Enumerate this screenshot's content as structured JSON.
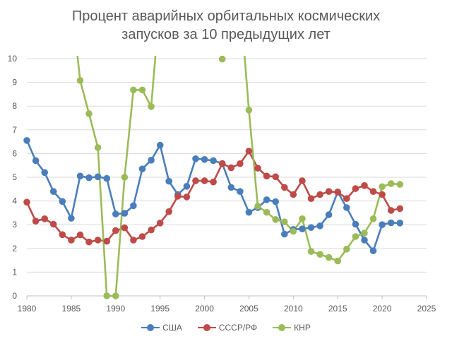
{
  "chart_data": {
    "type": "line",
    "title": [
      "Процент аварийных орбитальных космических",
      "запусков за 10 предыдущих лет"
    ],
    "xlim": [
      1980,
      2025
    ],
    "ylim": [
      0,
      10
    ],
    "x_ticks": [
      "1980",
      "1985",
      "1990",
      "1995",
      "2000",
      "2005",
      "2010",
      "2015",
      "2020",
      "2025"
    ],
    "y_ticks": [
      "0",
      "1",
      "2",
      "3",
      "4",
      "5",
      "6",
      "7",
      "8",
      "9",
      "10"
    ],
    "grid": "horizontal",
    "legend_position": "bottom",
    "series": [
      {
        "name": "США",
        "color": "#4a7ebb",
        "x": [
          1980,
          1981,
          1982,
          1983,
          1984,
          1985,
          1986,
          1987,
          1988,
          1989,
          1990,
          1991,
          1992,
          1993,
          1994,
          1995,
          1996,
          1997,
          1998,
          1999,
          2000,
          2001,
          2002,
          2003,
          2004,
          2005,
          2006,
          2007,
          2008,
          2009,
          2010,
          2011,
          2012,
          2013,
          2014,
          2015,
          2016,
          2017,
          2018,
          2019,
          2020,
          2021,
          2022
        ],
        "y": [
          6.55,
          5.7,
          5.2,
          4.4,
          3.98,
          3.27,
          5.05,
          4.98,
          5.02,
          4.95,
          3.45,
          3.48,
          3.8,
          5.35,
          5.72,
          6.35,
          4.83,
          4.27,
          4.62,
          5.78,
          5.75,
          5.7,
          5.58,
          4.57,
          4.4,
          3.52,
          3.72,
          4.05,
          3.97,
          2.6,
          2.8,
          2.82,
          2.88,
          2.95,
          3.42,
          4.38,
          3.72,
          3.02,
          2.35,
          1.9,
          3.0,
          3.08,
          3.07
        ]
      },
      {
        "name": "СССР/РФ",
        "color": "#be4b48",
        "x": [
          1980,
          1981,
          1982,
          1983,
          1984,
          1985,
          1986,
          1987,
          1988,
          1989,
          1990,
          1991,
          1992,
          1993,
          1994,
          1995,
          1996,
          1997,
          1998,
          1999,
          2000,
          2001,
          2002,
          2003,
          2004,
          2005,
          2006,
          2007,
          2008,
          2009,
          2010,
          2011,
          2012,
          2013,
          2014,
          2015,
          2016,
          2017,
          2018,
          2019,
          2020,
          2021,
          2022
        ],
        "y": [
          3.95,
          3.15,
          3.25,
          3.02,
          2.58,
          2.35,
          2.57,
          2.27,
          2.35,
          2.3,
          2.75,
          2.87,
          2.35,
          2.5,
          2.78,
          3.07,
          3.55,
          4.2,
          4.17,
          4.85,
          4.85,
          4.8,
          5.57,
          5.4,
          5.57,
          6.1,
          5.38,
          5.05,
          5.02,
          4.57,
          4.27,
          4.85,
          4.1,
          4.27,
          4.4,
          4.37,
          4.1,
          4.52,
          4.65,
          4.4,
          4.27,
          3.6,
          3.68
        ]
      },
      {
        "name": "КНР",
        "color": "#9bbb59",
        "x": [
          1986,
          1987,
          1988,
          1989,
          1990,
          1991,
          1992,
          1993,
          1994,
          2002,
          2005,
          2006,
          2007,
          2008,
          2009,
          2010,
          2011,
          2012,
          2013,
          2014,
          2015,
          2016,
          2017,
          2018,
          2019,
          2020,
          2021,
          2022
        ],
        "y": [
          9.08,
          7.68,
          6.25,
          0.0,
          0.0,
          5.0,
          8.68,
          8.68,
          7.98,
          9.98,
          7.83,
          3.78,
          3.52,
          3.22,
          3.12,
          2.72,
          3.25,
          1.87,
          1.75,
          1.62,
          1.47,
          1.97,
          2.5,
          2.65,
          3.25,
          4.6,
          4.73,
          4.7
        ],
        "offscale_path": [
          [
            1985,
            12.5
          ],
          [
            1986,
            9.08
          ],
          [
            1987,
            7.68
          ],
          [
            1988,
            6.25
          ],
          [
            1989,
            0.0
          ],
          [
            1990,
            0.0
          ],
          [
            1991,
            5.0
          ],
          [
            1992,
            8.68
          ],
          [
            1993,
            8.68
          ],
          [
            1994,
            7.98
          ],
          [
            1995,
            12.5
          ],
          null,
          [
            2001,
            12.5
          ],
          [
            2002,
            9.98
          ],
          [
            2003,
            12.5
          ],
          null,
          [
            2004,
            12.5
          ],
          [
            2005,
            7.83
          ],
          [
            2006,
            3.78
          ],
          [
            2007,
            3.52
          ],
          [
            2008,
            3.22
          ],
          [
            2009,
            3.12
          ],
          [
            2010,
            2.72
          ],
          [
            2011,
            3.25
          ],
          [
            2012,
            1.87
          ],
          [
            2013,
            1.75
          ],
          [
            2014,
            1.62
          ],
          [
            2015,
            1.47
          ],
          [
            2016,
            1.97
          ],
          [
            2017,
            2.5
          ],
          [
            2018,
            2.65
          ],
          [
            2019,
            3.25
          ],
          [
            2020,
            4.6
          ],
          [
            2021,
            4.73
          ],
          [
            2022,
            4.7
          ]
        ]
      }
    ]
  }
}
